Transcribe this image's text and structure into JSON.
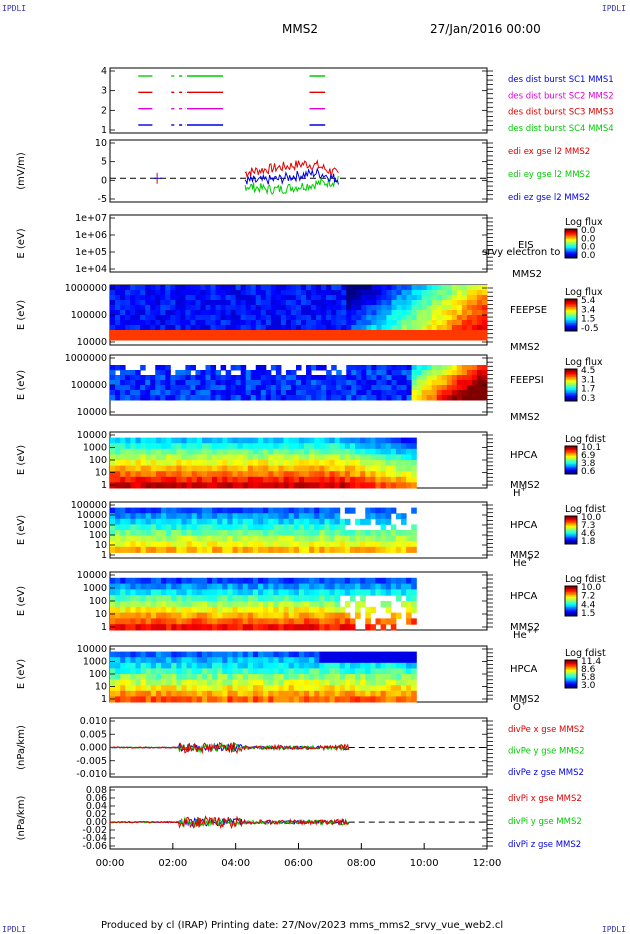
{
  "corner_labels": {
    "tl": "IPDLI",
    "tr": "IPDLI",
    "bl": "IPDLI",
    "br": "IPDLI"
  },
  "header": {
    "spacecraft": "MMS2",
    "date": "27/Jan/2016 00:00"
  },
  "footer": {
    "text": "Produced by cl (IRAP)   Printing date: 27/Nov/2023   mms_mms2_srvy_vue_web2.cl"
  },
  "colors": {
    "red": "#e00000",
    "magenta": "#e000e0",
    "green": "#00cc00",
    "blue": "#0000e0",
    "frame": "#000000"
  },
  "chart_data": [
    {
      "type": "line",
      "id": "burst",
      "ylim": [
        0.5,
        4.5
      ],
      "yticks": [
        "1",
        "2",
        "3",
        "4"
      ],
      "legend": [
        {
          "text": "des dist burst SC1 MMS1",
          "color": "#0000e0"
        },
        {
          "text": "des dist burst SC2 MMS2",
          "color": "#e000e0"
        },
        {
          "text": "des dist burst SC3 MMS3",
          "color": "#e00000"
        },
        {
          "text": "des dist burst SC4 MMS4",
          "color": "#00cc00"
        }
      ],
      "intervals_hours": [
        [
          0.9,
          1.35
        ],
        [
          1.95,
          2.05
        ],
        [
          2.2,
          2.4
        ],
        [
          2.45,
          3.6
        ],
        [
          6.35,
          6.85
        ]
      ]
    },
    {
      "type": "line",
      "id": "edi",
      "ylabel": "(mV/m)",
      "ylim": [
        -6.5,
        10.5
      ],
      "yticks": [
        "-5",
        "0",
        "5",
        "10"
      ],
      "legend": [
        {
          "text": "edi ex gse l2 MMS2",
          "color": "#e00000"
        },
        {
          "text": "edi ey gse l2 MMS2",
          "color": "#00cc00"
        },
        {
          "text": "edi ez gse l2 MMS2",
          "color": "#0000e0"
        }
      ],
      "series": [
        {
          "color": "#e00000",
          "x": [
            4.3,
            4.6,
            5.0,
            5.4,
            5.8,
            6.2,
            6.6,
            7.0,
            7.3
          ],
          "y": [
            1.5,
            2.0,
            2.5,
            3.0,
            3.5,
            4.0,
            3.5,
            2.0,
            1.0
          ]
        },
        {
          "color": "#00cc00",
          "x": [
            4.3,
            4.6,
            5.0,
            5.4,
            5.8,
            6.2,
            6.6,
            7.0,
            7.3
          ],
          "y": [
            -2.0,
            -2.5,
            -3.0,
            -3.0,
            -2.5,
            -2.0,
            -1.5,
            -1.0,
            -0.5
          ]
        },
        {
          "color": "#0000e0",
          "x": [
            4.3,
            4.6,
            5.0,
            5.4,
            5.8,
            6.2,
            6.6,
            7.0,
            7.3
          ],
          "y": [
            -0.5,
            -0.8,
            -0.5,
            -0.2,
            0.5,
            1.0,
            1.5,
            0.5,
            -0.5
          ]
        }
      ]
    },
    {
      "type": "heatmap",
      "id": "eis",
      "ylabel": "E (eV)",
      "yticks": [
        "1e+04",
        "1e+05",
        "1e+06",
        "1e+07"
      ],
      "label1": "EIS",
      "label2": "MMS2",
      "overlay": "srvy electron to",
      "colorbar": {
        "title": "Log flux",
        "ticks": [
          "0.0",
          "0.0",
          "0.0",
          "0.0"
        ]
      }
    },
    {
      "type": "heatmap",
      "id": "feeps_e",
      "ylabel": "E (eV)",
      "yticks": [
        "10000",
        "100000",
        "1000000"
      ],
      "label1": "FEEPSE",
      "label2": "MMS2",
      "colorbar": {
        "title": "Log flux",
        "ticks": [
          "5.4",
          "3.4",
          "1.5",
          "-0.5"
        ]
      }
    },
    {
      "type": "heatmap",
      "id": "feeps_i",
      "ylabel": "E (eV)",
      "yticks": [
        "10000",
        "100000",
        "1000000"
      ],
      "label1": "FEEPSI",
      "label2": "MMS2",
      "colorbar": {
        "title": "Log flux",
        "ticks": [
          "4.5",
          "3.1",
          "1.7",
          "0.3"
        ]
      }
    },
    {
      "type": "heatmap",
      "id": "hpca_h",
      "ylabel": "E (eV)",
      "yticks": [
        "1",
        "10",
        "100",
        "1000",
        "10000"
      ],
      "label1": "HPCA",
      "label2": "MMS2",
      "species": "H",
      "species_sup": "+",
      "colorbar": {
        "title": "Log fdist",
        "ticks": [
          "10.1",
          "6.9",
          "3.8",
          "0.6"
        ]
      }
    },
    {
      "type": "heatmap",
      "id": "hpca_he",
      "ylabel": "E (eV)",
      "yticks": [
        "1",
        "10",
        "100",
        "1000",
        "10000",
        "100000"
      ],
      "label1": "HPCA",
      "label2": "MMS2",
      "species": "He",
      "species_sup": "+",
      "colorbar": {
        "title": "Log fdist",
        "ticks": [
          "10.0",
          "7.3",
          "4.6",
          "1.8"
        ]
      }
    },
    {
      "type": "heatmap",
      "id": "hpca_hepp",
      "ylabel": "E (eV)",
      "yticks": [
        "1",
        "10",
        "100",
        "1000",
        "10000"
      ],
      "label1": "HPCA",
      "label2": "MMS2",
      "species": "He",
      "species_sup": "++",
      "colorbar": {
        "title": "Log fdist",
        "ticks": [
          "10.0",
          "7.2",
          "4.4",
          "1.5"
        ]
      }
    },
    {
      "type": "heatmap",
      "id": "hpca_o",
      "ylabel": "E (eV)",
      "yticks": [
        "1",
        "10",
        "100",
        "1000",
        "10000"
      ],
      "label1": "HPCA",
      "label2": "MMS2",
      "species": "O",
      "species_sup": "+",
      "colorbar": {
        "title": "Log fdist",
        "ticks": [
          "11.4",
          "8.6",
          "5.8",
          "3.0"
        ]
      }
    },
    {
      "type": "line",
      "id": "divpe",
      "ylabel": "(nPa/km)",
      "ylim": [
        -0.013,
        0.013
      ],
      "yticks": [
        "-0.010",
        "-0.005",
        "0.000",
        "0.005",
        "0.010"
      ],
      "legend": [
        {
          "text": "divPe x gse MMS2",
          "color": "#e00000"
        },
        {
          "text": "divPe y gse MMS2",
          "color": "#00cc00"
        },
        {
          "text": "divPe z gse MMS2",
          "color": "#0000e0"
        }
      ],
      "active_hours": [
        0.0,
        7.6
      ]
    },
    {
      "type": "line",
      "id": "divpi",
      "ylabel": "(nPa/km)",
      "ylim": [
        -0.065,
        0.085
      ],
      "yticks": [
        "-0.06",
        "-0.04",
        "-0.02",
        "0.00",
        "0.02",
        "0.04",
        "0.06",
        "0.08"
      ],
      "legend": [
        {
          "text": "divPi x gse MMS2",
          "color": "#e00000"
        },
        {
          "text": "divPi y gse MMS2",
          "color": "#00cc00"
        },
        {
          "text": "divPi z gse MMS2",
          "color": "#0000e0"
        }
      ],
      "active_hours": [
        0.0,
        7.6
      ]
    }
  ],
  "xaxis": {
    "ticks": [
      "00:00",
      "02:00",
      "04:00",
      "06:00",
      "08:00",
      "10:00",
      "12:00"
    ],
    "range_hours": [
      0,
      12
    ]
  }
}
